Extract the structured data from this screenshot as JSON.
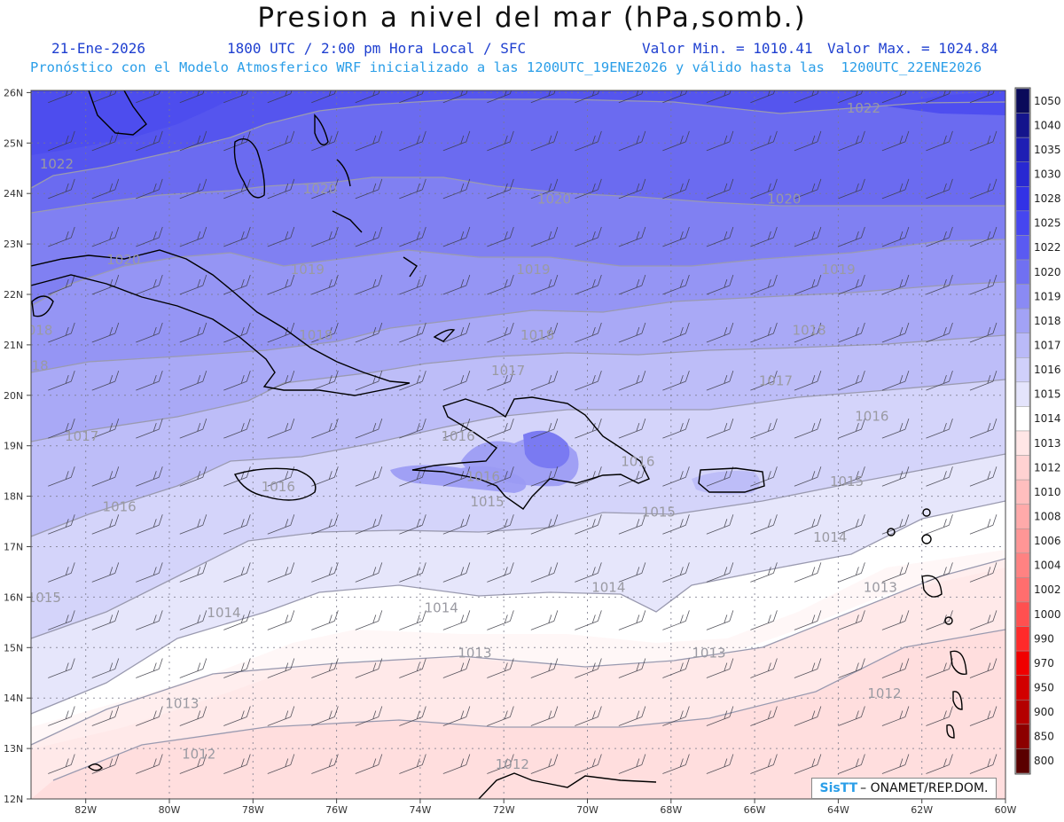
{
  "title": "Presion a nivel del mar (hPa,somb.)",
  "header": {
    "date": "21-Ene-2026",
    "time": "1800 UTC / 2:00 pm Hora Local / SFC",
    "min": "Valor Min. = 1010.41",
    "max": "Valor Max. = 1024.84",
    "forecast": "Pronóstico con el Modelo Atmosferico WRF inicializado a las 1200UTC_19ENE2026 y válido hasta las  1200UTC_22ENE2026"
  },
  "credit": {
    "logo": "SisTT",
    "text": "– ONAMET/REP.DOM."
  },
  "axes": {
    "lat_labels": [
      "26N",
      "25N",
      "24N",
      "23N",
      "22N",
      "21N",
      "20N",
      "19N",
      "18N",
      "17N",
      "16N",
      "15N",
      "14N",
      "13N",
      "12N"
    ],
    "lon_labels": [
      "82W",
      "80W",
      "78W",
      "76W",
      "74W",
      "72W",
      "70W",
      "68W",
      "66W",
      "64W",
      "62W",
      "60W"
    ]
  },
  "colorbar": {
    "levels": [
      "1050",
      "1040",
      "1035",
      "1030",
      "1028",
      "1025",
      "1022",
      "1020",
      "1019",
      "1018",
      "1017",
      "1016",
      "1015",
      "1014",
      "1013",
      "1012",
      "1010",
      "1008",
      "1006",
      "1004",
      "1002",
      "1000",
      "990",
      "970",
      "950",
      "900",
      "850",
      "800"
    ],
    "colors": [
      "#0a0a5a",
      "#14148c",
      "#1e1eb4",
      "#2828d2",
      "#3232e6",
      "#4646f0",
      "#5a5af2",
      "#7070f2",
      "#8a8af4",
      "#a2a2f6",
      "#babaf8",
      "#d0d0fa",
      "#e4e4fc",
      "#ffffff",
      "#ffe6e6",
      "#ffd2d2",
      "#ffbebe",
      "#ffaaaa",
      "#ff9696",
      "#ff8282",
      "#ff6e6e",
      "#ff5050",
      "#ff2a2a",
      "#f00000",
      "#d20000",
      "#b40000",
      "#8c0000",
      "#5a0000"
    ]
  },
  "isobar_labels": [
    {
      "t": "1022",
      "lon": -83.1,
      "lat": 24.5
    },
    {
      "t": "1022",
      "lon": -63.8,
      "lat": 25.6
    },
    {
      "t": "1020",
      "lon": -76.8,
      "lat": 24.0
    },
    {
      "t": "1020",
      "lon": -71.2,
      "lat": 23.8
    },
    {
      "t": "1020",
      "lon": -65.7,
      "lat": 23.8
    },
    {
      "t": "1020",
      "lon": -81.5,
      "lat": 22.6
    },
    {
      "t": "1019",
      "lon": -77.1,
      "lat": 22.4
    },
    {
      "t": "1019",
      "lon": -71.7,
      "lat": 22.4
    },
    {
      "t": "1019",
      "lon": -64.4,
      "lat": 22.4
    },
    {
      "t": "1018",
      "lon": -83.6,
      "lat": 21.2
    },
    {
      "t": "1018",
      "lon": -76.9,
      "lat": 21.1
    },
    {
      "t": "1018",
      "lon": -71.6,
      "lat": 21.1
    },
    {
      "t": "1018",
      "lon": -65.1,
      "lat": 21.2
    },
    {
      "t": "1018",
      "lon": -83.7,
      "lat": 20.5
    },
    {
      "t": "1017",
      "lon": -72.3,
      "lat": 20.4
    },
    {
      "t": "1017",
      "lon": -65.9,
      "lat": 20.2
    },
    {
      "t": "1017",
      "lon": -82.5,
      "lat": 19.1
    },
    {
      "t": "1016",
      "lon": -73.5,
      "lat": 19.1
    },
    {
      "t": "1016",
      "lon": -63.6,
      "lat": 19.5
    },
    {
      "t": "1016",
      "lon": -69.2,
      "lat": 18.6
    },
    {
      "t": "1016",
      "lon": -72.9,
      "lat": 18.3
    },
    {
      "t": "1016",
      "lon": -77.8,
      "lat": 18.1
    },
    {
      "t": "1016",
      "lon": -81.6,
      "lat": 17.7
    },
    {
      "t": "1015",
      "lon": -72.8,
      "lat": 17.8
    },
    {
      "t": "1015",
      "lon": -68.7,
      "lat": 17.6
    },
    {
      "t": "1015",
      "lon": -64.2,
      "lat": 18.2
    },
    {
      "t": "1015",
      "lon": -83.4,
      "lat": 15.9
    },
    {
      "t": "1014",
      "lon": -64.6,
      "lat": 17.1
    },
    {
      "t": "1014",
      "lon": -69.9,
      "lat": 16.1
    },
    {
      "t": "1014",
      "lon": -73.9,
      "lat": 15.7
    },
    {
      "t": "1014",
      "lon": -79.1,
      "lat": 15.6
    },
    {
      "t": "1013",
      "lon": -63.4,
      "lat": 16.1
    },
    {
      "t": "1013",
      "lon": -73.1,
      "lat": 14.8
    },
    {
      "t": "1013",
      "lon": -67.5,
      "lat": 14.8
    },
    {
      "t": "1013",
      "lon": -80.1,
      "lat": 13.8
    },
    {
      "t": "1012",
      "lon": -63.3,
      "lat": 14.0
    },
    {
      "t": "1012",
      "lon": -79.7,
      "lat": 12.8
    },
    {
      "t": "1012",
      "lon": -72.2,
      "lat": 12.6
    }
  ]
}
